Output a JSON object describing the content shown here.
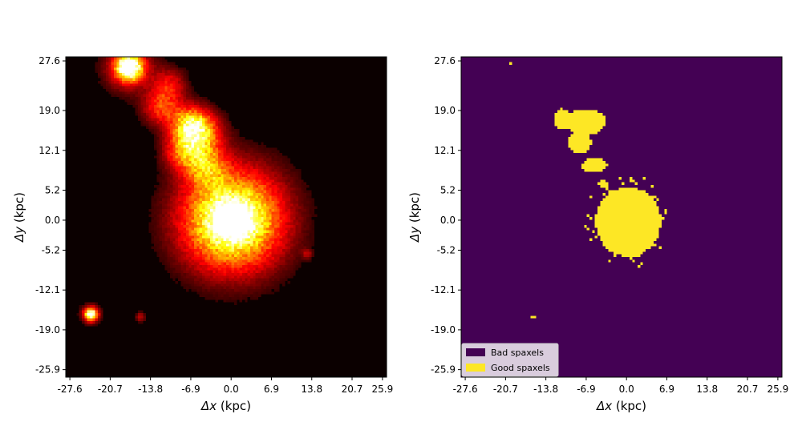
{
  "chart_data": [
    {
      "type": "heatmap",
      "panel": "left",
      "title": "",
      "xlabel_math": "Δx",
      "xlabel_unit": "(kpc)",
      "ylabel_math": "Δy",
      "ylabel_unit": "(kpc)",
      "xlim": [
        -28.3,
        26.6
      ],
      "ylim": [
        -27.2,
        28.3
      ],
      "x_ticks": [
        -27.6,
        -20.7,
        -13.8,
        -6.9,
        0.0,
        6.9,
        13.8,
        20.7,
        25.9
      ],
      "x_tick_labels": [
        "-27.6",
        "-20.7",
        "-13.8",
        "-6.9",
        "0.0",
        "6.9",
        "13.8",
        "20.7",
        "25.9"
      ],
      "y_ticks": [
        27.6,
        19.0,
        12.1,
        5.2,
        0.0,
        -5.2,
        -12.1,
        -19.0,
        -25.9
      ],
      "y_tick_labels": [
        "27.6",
        "19.0",
        "12.1",
        "5.2",
        "0.0",
        "-5.2",
        "-12.1",
        "-19.0",
        "-25.9"
      ],
      "colormap": "hot",
      "background_color": "#0b0000",
      "sources": [
        {
          "x": 0.2,
          "y": 0.0,
          "sigma": 6.0,
          "peak": 1.0
        },
        {
          "x": 0.2,
          "y": 0.0,
          "sigma": 2.0,
          "peak": 0.55
        },
        {
          "x": -17.5,
          "y": 26.5,
          "sigma": 1.5,
          "peak": 1.0
        },
        {
          "x": -17.5,
          "y": 26.5,
          "sigma": 3.0,
          "peak": 0.35
        },
        {
          "x": -7.0,
          "y": 16.5,
          "sigma": 2.3,
          "peak": 0.6
        },
        {
          "x": -12.0,
          "y": 19.5,
          "sigma": 2.2,
          "peak": 0.4
        },
        {
          "x": -5.0,
          "y": 15.0,
          "sigma": 2.5,
          "peak": 0.45
        },
        {
          "x": -8.5,
          "y": 12.0,
          "sigma": 2.2,
          "peak": 0.4
        },
        {
          "x": -4.5,
          "y": 9.5,
          "sigma": 2.5,
          "peak": 0.45
        },
        {
          "x": -10.5,
          "y": 23.5,
          "sigma": 2.0,
          "peak": 0.3
        },
        {
          "x": -24.0,
          "y": -16.3,
          "sigma": 0.7,
          "peak": 0.85
        },
        {
          "x": -24.0,
          "y": -16.3,
          "sigma": 1.2,
          "peak": 0.3
        },
        {
          "x": -15.5,
          "y": -16.8,
          "sigma": 0.6,
          "peak": 0.25
        },
        {
          "x": 13.0,
          "y": -5.8,
          "sigma": 0.6,
          "peak": 0.2
        }
      ]
    },
    {
      "type": "heatmap",
      "panel": "right",
      "title": "",
      "xlabel_math": "Δx",
      "xlabel_unit": "(kpc)",
      "ylabel_math": "Δy",
      "ylabel_unit": "(kpc)",
      "xlim": [
        -28.3,
        26.6
      ],
      "ylim": [
        -27.2,
        28.3
      ],
      "x_ticks": [
        -27.6,
        -20.7,
        -13.8,
        -6.9,
        0.0,
        6.9,
        13.8,
        20.7,
        25.9
      ],
      "x_tick_labels": [
        "-27.6",
        "-20.7",
        "-13.8",
        "-6.9",
        "0.0",
        "6.9",
        "13.8",
        "20.7",
        "25.9"
      ],
      "y_ticks": [
        27.6,
        19.0,
        12.1,
        5.2,
        0.0,
        -5.2,
        -12.1,
        -19.0,
        -25.9
      ],
      "y_tick_labels": [
        "27.6",
        "19.0",
        "12.1",
        "5.2",
        "0.0",
        "-5.2",
        "-12.1",
        "-19.0",
        "-25.9"
      ],
      "categories": [
        "Bad spaxels",
        "Good spaxels"
      ],
      "colors": {
        "bad": "#440154",
        "good": "#fde725"
      },
      "legend_position": "lower-left",
      "good_regions": [
        {
          "shape": "ellipse",
          "cx": 0.3,
          "cy": -0.3,
          "rx": 5.6,
          "ry": 6.0
        },
        {
          "shape": "ellipse",
          "cx": -7.0,
          "cy": 17.0,
          "rx": 3.5,
          "ry": 2.2
        },
        {
          "shape": "ellipse",
          "cx": -11.0,
          "cy": 17.5,
          "rx": 1.5,
          "ry": 1.8
        },
        {
          "shape": "ellipse",
          "cx": -8.0,
          "cy": 13.5,
          "rx": 2.0,
          "ry": 2.0
        },
        {
          "shape": "ellipse",
          "cx": -5.5,
          "cy": 9.5,
          "rx": 2.2,
          "ry": 1.2
        },
        {
          "shape": "ellipse",
          "cx": -4.0,
          "cy": 6.3,
          "rx": 1.0,
          "ry": 0.6
        },
        {
          "shape": "ellipse",
          "cx": -16.0,
          "cy": -16.8,
          "rx": 0.5,
          "ry": 0.4
        },
        {
          "shape": "ellipse",
          "cx": -20.0,
          "cy": 27.0,
          "rx": 0.3,
          "ry": 0.3
        }
      ],
      "good_halo": {
        "cx": 0.3,
        "cy": -0.3,
        "rx_outer": 7.6,
        "ry_outer": 8.2
      }
    }
  ]
}
